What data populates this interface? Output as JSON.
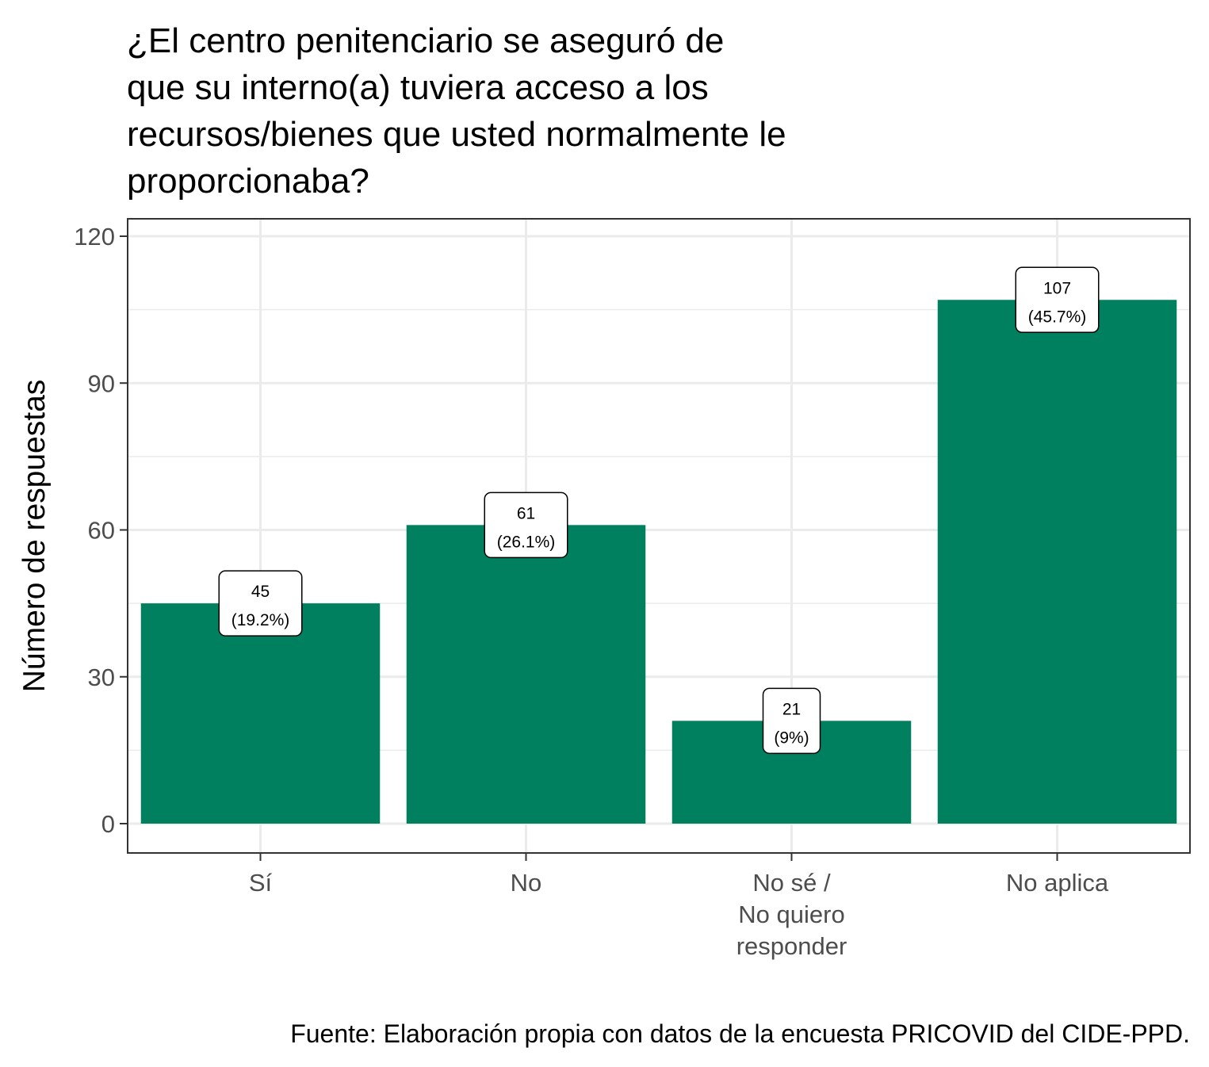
{
  "chart_data": {
    "type": "bar",
    "title": "¿El centro penitenciario se aseguró de\nque su interno(a) tuviera acceso a los\nrecursos/bienes que usted normalmente le\nproporcionaba?",
    "xlabel": "",
    "ylabel": "Número de respuestas",
    "categories": [
      "Sí",
      "No",
      "No sé /\nNo quiero\nresponder",
      "No aplica"
    ],
    "values": [
      45,
      61,
      21,
      107
    ],
    "data_labels": [
      {
        "count": "45",
        "percent": "(19.2%)"
      },
      {
        "count": "61",
        "percent": "(26.1%)"
      },
      {
        "count": "21",
        "percent": "(9%)"
      },
      {
        "count": "107",
        "percent": "(45.7%)"
      }
    ],
    "ylim": [
      -6,
      125
    ],
    "yticks": [
      0,
      30,
      60,
      90,
      120
    ],
    "ytick_labels": [
      "0",
      "30",
      "60",
      "90",
      "120"
    ],
    "grid": true,
    "legend": "none",
    "bar_color": "#00805f",
    "caption": "Fuente: Elaboración propia con datos de la encuesta PRICOVID del CIDE-PPD."
  }
}
